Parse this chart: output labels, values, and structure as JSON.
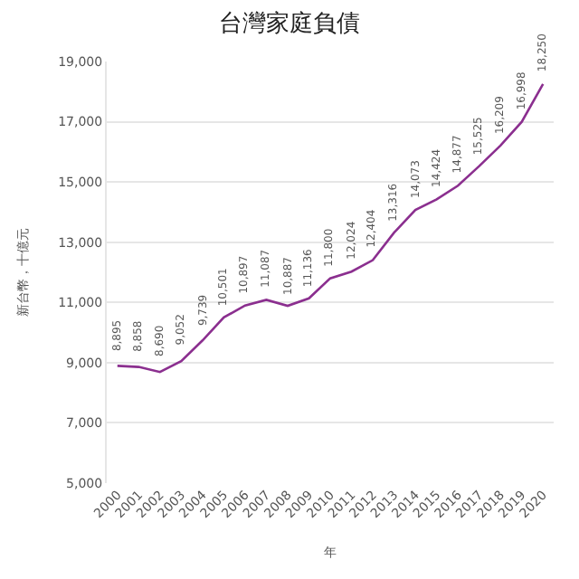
{
  "chart_data": {
    "type": "line",
    "title": "台灣家庭負債",
    "xlabel": "年",
    "ylabel": "新台幣，十億元",
    "categories": [
      "2000",
      "2001",
      "2002",
      "2003",
      "2004",
      "2005",
      "2006",
      "2007",
      "2008",
      "2009",
      "2010",
      "2011",
      "2012",
      "2013",
      "2014",
      "2015",
      "2016",
      "2017",
      "2018",
      "2019",
      "2020"
    ],
    "series": [
      {
        "color": "#8b2f8f",
        "values": [
          8895,
          8858,
          8690,
          9052,
          9739,
          10501,
          10897,
          11087,
          10887,
          11136,
          11800,
          12024,
          12404,
          13316,
          14073,
          14424,
          14877,
          15525,
          16209,
          16998,
          18250
        ],
        "value_labels": [
          "8,895",
          "8,858",
          "8,690",
          "9,052",
          "9,739",
          "10,501",
          "10,897",
          "11,087",
          "10,887",
          "11,136",
          "11,800",
          "12,024",
          "12,404",
          "13,316",
          "14,073",
          "14,424",
          "14,877",
          "15,525",
          "16,209",
          "16,998",
          "18,250"
        ]
      }
    ],
    "ylim": [
      5000,
      19000
    ],
    "yticks": [
      {
        "value": 5000,
        "label": "5,000"
      },
      {
        "value": 7000,
        "label": "7,000"
      },
      {
        "value": 9000,
        "label": "9,000"
      },
      {
        "value": 11000,
        "label": "11,000"
      },
      {
        "value": 13000,
        "label": "13,000"
      },
      {
        "value": 15000,
        "label": "15,000"
      },
      {
        "value": 17000,
        "label": "17,000"
      },
      {
        "value": 19000,
        "label": "19,000"
      }
    ],
    "grid": "y",
    "marker": "none",
    "line_style": "solid"
  }
}
